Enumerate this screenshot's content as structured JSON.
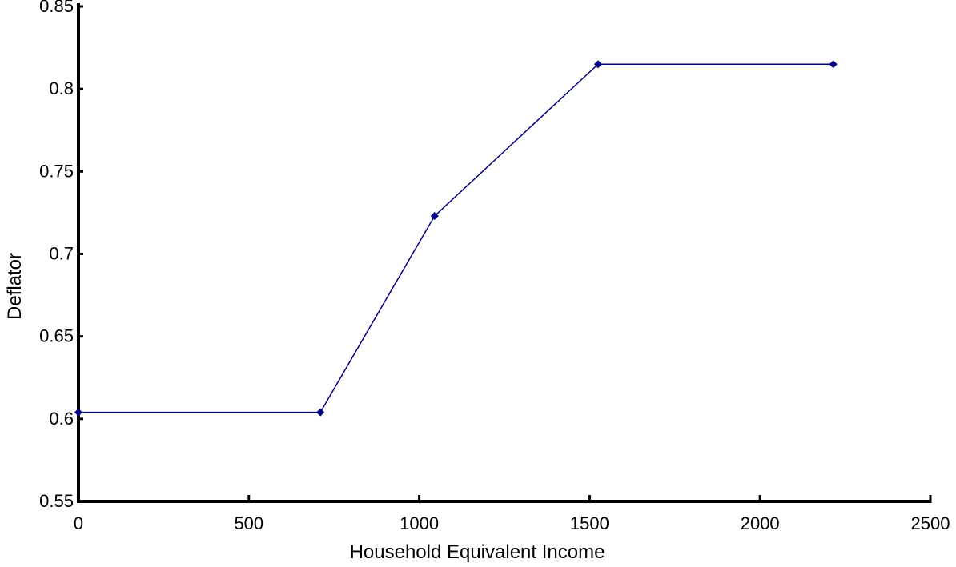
{
  "chart_data": {
    "type": "line",
    "title": "",
    "xlabel": "Household Equivalent Income",
    "ylabel": "Deflator",
    "xlim": [
      0,
      2500
    ],
    "ylim": [
      0.55,
      0.85
    ],
    "x_ticks": [
      0,
      500,
      1000,
      1500,
      2000,
      2500
    ],
    "y_ticks": [
      0.55,
      0.6,
      0.65,
      0.7,
      0.75,
      0.8,
      0.85
    ],
    "x_tick_labels": [
      "0",
      "500",
      "1000",
      "1500",
      "2000",
      "2500"
    ],
    "y_tick_labels": [
      "0.55",
      "0.6",
      "0.65",
      "0.7",
      "0.75",
      "0.8",
      "0.85"
    ],
    "grid": false,
    "legend": "none",
    "series": [
      {
        "color": "#000080",
        "marker": "diamond",
        "points": [
          {
            "x": 0,
            "y": 0.604
          },
          {
            "x": 710,
            "y": 0.604
          },
          {
            "x": 1045,
            "y": 0.723
          },
          {
            "x": 1525,
            "y": 0.815
          },
          {
            "x": 2215,
            "y": 0.815
          }
        ]
      }
    ]
  }
}
